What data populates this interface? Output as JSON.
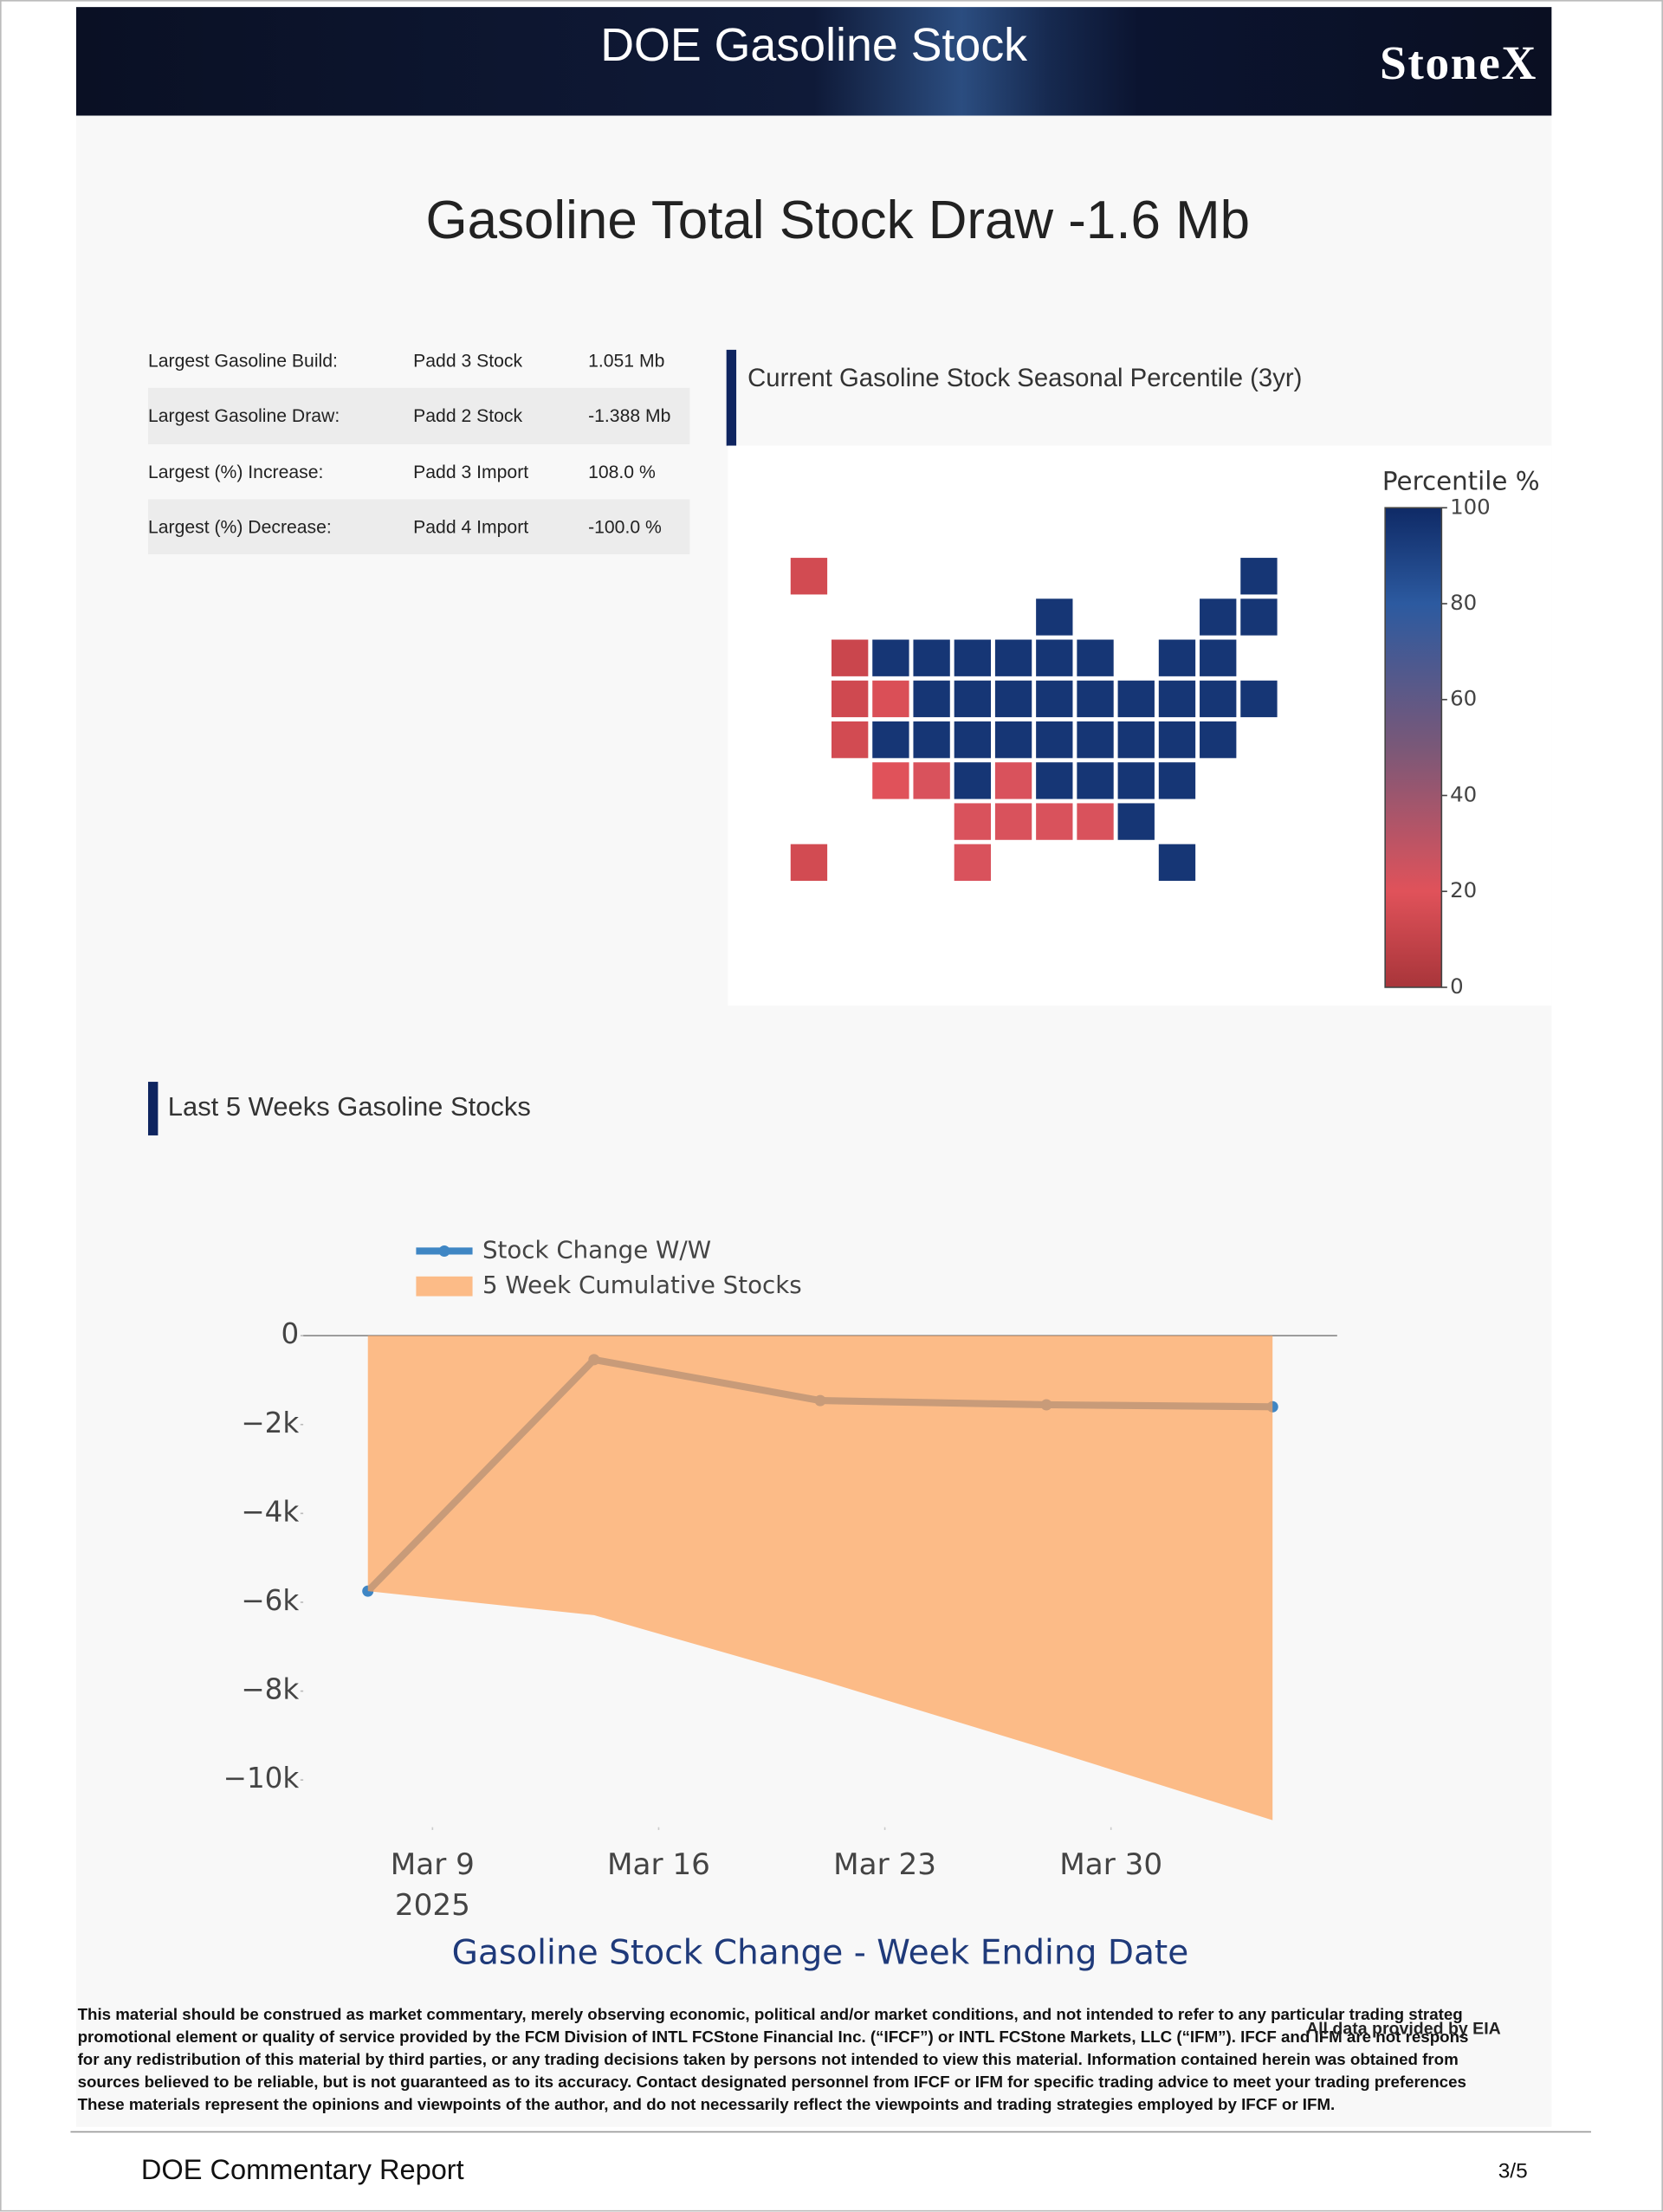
{
  "header": {
    "title": "DOE Gasoline Stock",
    "brand": "StoneX"
  },
  "headline": "Gasoline Total Stock Draw -1.6 Mb",
  "table": {
    "rows": [
      [
        "Largest Gasoline Build:",
        "Padd 3 Stock",
        "1.051 Mb"
      ],
      [
        "Largest Gasoline Draw:",
        "Padd 2 Stock",
        "-1.388 Mb"
      ],
      [
        "Largest (%) Increase:",
        "Padd 3 Import",
        "108.0 %"
      ],
      [
        "Largest (%) Decrease:",
        "Padd 4 Import",
        "-100.0 %"
      ]
    ]
  },
  "chart_data": [
    {
      "type": "choropleth",
      "title": "Current Gasoline Stock Seasonal Percentile (3yr)",
      "colorbar_title": "Percentile %",
      "locations": [
        "AK",
        "ME",
        "WI",
        "VT",
        "NH",
        "WA",
        "ID",
        "MT",
        "ND",
        "MN",
        "IL",
        "MI",
        "NY",
        "MA",
        "OR",
        "NV",
        "WY",
        "SD",
        "IA",
        "IN",
        "OH",
        "PA",
        "NJ",
        "CT",
        "RI",
        "CA",
        "UT",
        "CO",
        "NE",
        "MO",
        "KY",
        "WV",
        "VA",
        "MD",
        "DE",
        "AZ",
        "NM",
        "KS",
        "AR",
        "TN",
        "NC",
        "SC",
        "DC",
        "OK",
        "LA",
        "MS",
        "AL",
        "GA",
        "HI",
        "TX",
        "FL"
      ],
      "values": [
        15,
        95,
        95,
        95,
        95,
        12,
        95,
        95,
        95,
        95,
        95,
        95,
        95,
        95,
        14,
        18,
        95,
        95,
        95,
        95,
        95,
        95,
        95,
        95,
        95,
        15,
        95,
        95,
        95,
        95,
        95,
        95,
        95,
        95,
        95,
        20,
        22,
        95,
        22,
        95,
        95,
        95,
        95,
        22,
        22,
        22,
        22,
        95,
        15,
        22,
        95
      ],
      "clim": [
        0,
        100
      ],
      "cticks": [
        0,
        20,
        40,
        60,
        80,
        100
      ],
      "colorscale": [
        [
          0,
          "#a8353a"
        ],
        [
          20,
          "#e0525a"
        ],
        [
          50,
          "#7a5878"
        ],
        [
          80,
          "#2c5aa0"
        ],
        [
          100,
          "#0f2a66"
        ]
      ]
    },
    {
      "type": "line",
      "section_title": "Last 5 Weeks Gasoline Stocks",
      "x_title": "Gasoline Stock Change - Week Ending Date",
      "x": [
        "2025-03-07",
        "2025-03-14",
        "2025-03-21",
        "2025-03-28",
        "2025-04-04"
      ],
      "series": [
        {
          "name": "Stock Change W/W",
          "type": "line",
          "color": "#3f86c4",
          "values": [
            -5750,
            -540,
            -1460,
            -1555,
            -1600
          ]
        },
        {
          "name": "5 Week Cumulative Stocks",
          "type": "area",
          "color": "#fda35c",
          "values": [
            -5750,
            -6290,
            -7750,
            -9305,
            -10905
          ]
        }
      ],
      "xlim": [
        "2025-03-05",
        "2025-04-06"
      ],
      "xticks": [
        {
          "value": "2025-03-09",
          "label": "Mar 9"
        },
        {
          "value": "2025-03-16",
          "label": "Mar 16"
        },
        {
          "value": "2025-03-23",
          "label": "Mar 23"
        },
        {
          "value": "2025-03-30",
          "label": "Mar 30"
        }
      ],
      "x_year": "2025",
      "ylim": [
        -11000,
        0
      ],
      "yticks": [
        0,
        {
          "value": -2000,
          "label": "−2k"
        },
        {
          "value": -4000,
          "label": "−4k"
        },
        {
          "value": -6000,
          "label": "−6k"
        },
        {
          "value": -8000,
          "label": "−8k"
        },
        {
          "value": -10000,
          "label": "−10k"
        }
      ],
      "legend": "top-left"
    }
  ],
  "disclaimer": {
    "lines": [
      "This material should be construed as market commentary, merely observing economic, political and/or market conditions, and not intended to refer to any particular trading strateg",
      "promotional element or quality of service provided by the FCM Division of INTL FCStone Financial Inc. (“IFCF”) or INTL FCStone Markets, LLC (“IFM”). IFCF and IFM are not respons",
      "for any redistribution of this material by third parties, or any trading decisions taken by persons not intended to view this material. Information contained herein was obtained from",
      "sources believed to be reliable, but is not guaranteed as to its accuracy. Contact designated personnel from IFCF or IFM for specific trading advice to meet your trading preferences",
      "These materials represent the opinions and viewpoints of the author, and do not necessarily reflect the viewpoints and trading strategies employed by IFCF or IFM."
    ],
    "source": "All data provided by EIA"
  },
  "footer": {
    "title": "DOE Commentary Report",
    "page": "3/5"
  }
}
